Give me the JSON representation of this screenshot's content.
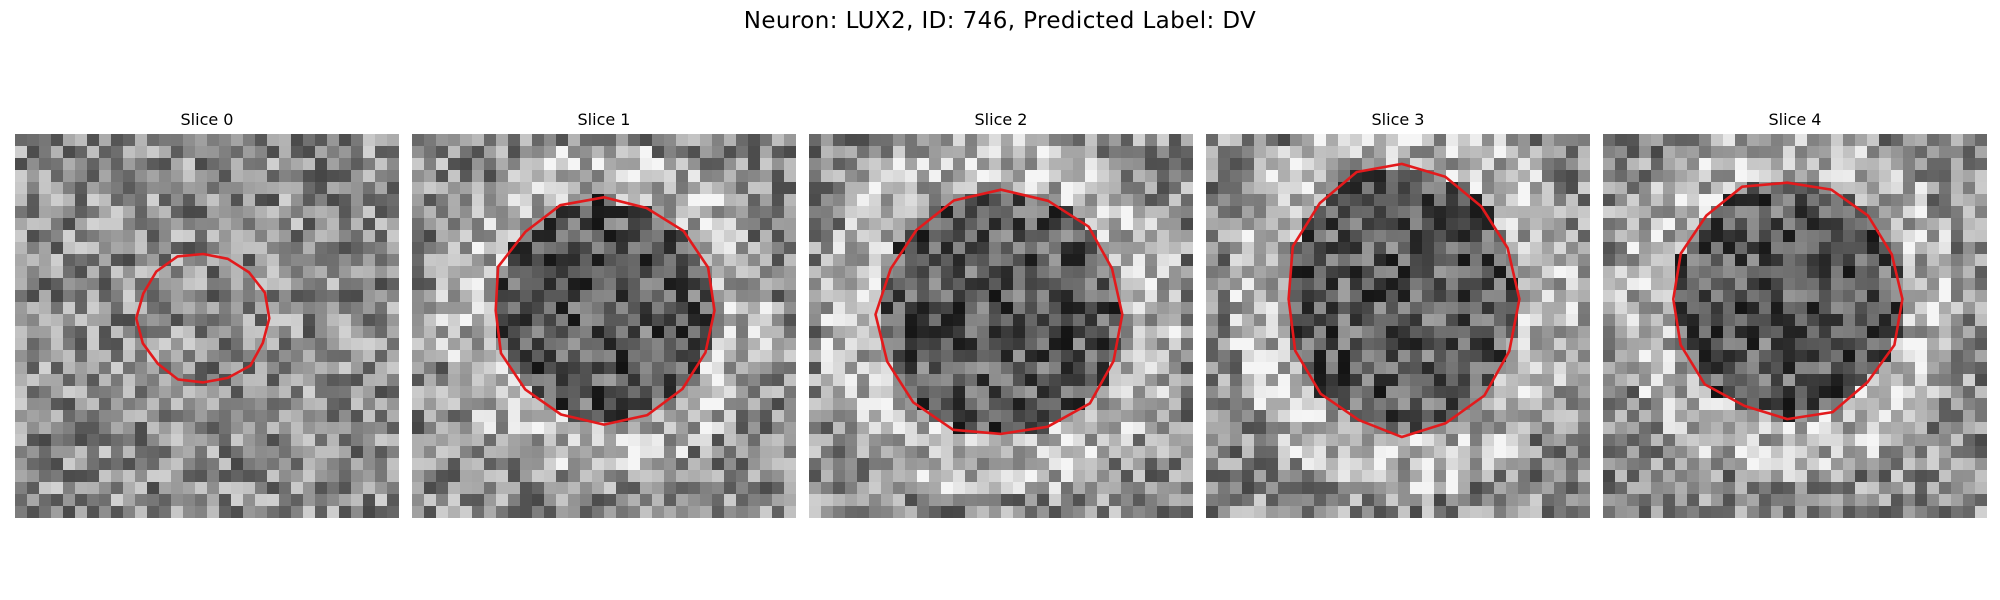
{
  "figure": {
    "title": "Neuron: LUX2, ID: 746, Predicted Label: DV"
  },
  "panels": [
    {
      "label": "Slice 0",
      "seed": 11,
      "roi_center": [
        0.49,
        0.48
      ],
      "roi_radius": [
        0.17,
        0.17
      ]
    },
    {
      "label": "Slice 1",
      "seed": 23,
      "roi_center": [
        0.5,
        0.46
      ],
      "roi_radius": [
        0.29,
        0.29
      ]
    },
    {
      "label": "Slice 2",
      "seed": 37,
      "roi_center": [
        0.5,
        0.47
      ],
      "roi_radius": [
        0.32,
        0.32
      ]
    },
    {
      "label": "Slice 3",
      "seed": 41,
      "roi_center": [
        0.51,
        0.43
      ],
      "roi_radius": [
        0.3,
        0.35
      ]
    },
    {
      "label": "Slice 4",
      "seed": 53,
      "roi_center": [
        0.48,
        0.43
      ],
      "roi_radius": [
        0.3,
        0.31
      ]
    }
  ],
  "colors": {
    "contour": "#e31a1c"
  }
}
